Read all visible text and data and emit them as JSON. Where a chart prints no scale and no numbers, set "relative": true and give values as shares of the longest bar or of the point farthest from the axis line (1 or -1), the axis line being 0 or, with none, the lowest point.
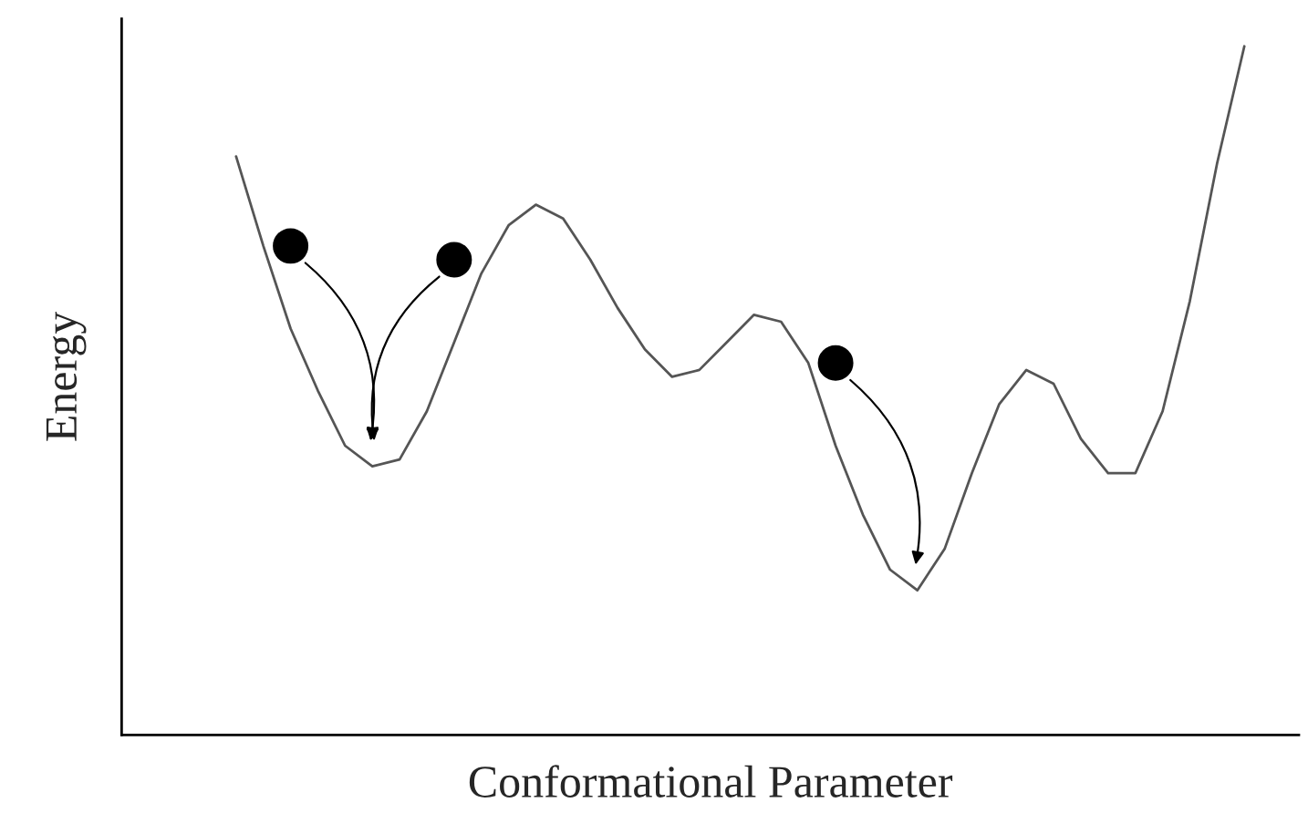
{
  "chart_data": {
    "type": "line",
    "relative": true,
    "xlabel": "Conformational Parameter",
    "ylabel": "Energy",
    "tick_labels": false,
    "legend": false,
    "categories": [
      null,
      null,
      null,
      null,
      null,
      null,
      null,
      null,
      null,
      null,
      null,
      null,
      null,
      null,
      null,
      null,
      null,
      null,
      null,
      null,
      null,
      null,
      null,
      null,
      null,
      null,
      null,
      null,
      null,
      null,
      null,
      null,
      null,
      null,
      null,
      null,
      null,
      null
    ],
    "series": [
      {
        "color": "#555555",
        "marker": "none",
        "line_style": "solid",
        "values": [
          0.84,
          0.71,
          0.59,
          0.5,
          0.42,
          0.39,
          0.4,
          0.47,
          0.57,
          0.67,
          0.74,
          0.77,
          0.75,
          0.69,
          0.62,
          0.56,
          0.52,
          0.53,
          0.57,
          0.61,
          0.6,
          0.54,
          0.42,
          0.32,
          0.24,
          0.21,
          0.27,
          0.38,
          0.48,
          0.53,
          0.51,
          0.43,
          0.38,
          0.38,
          0.47,
          0.63,
          0.83,
          1.0
        ]
      }
    ]
  }
}
